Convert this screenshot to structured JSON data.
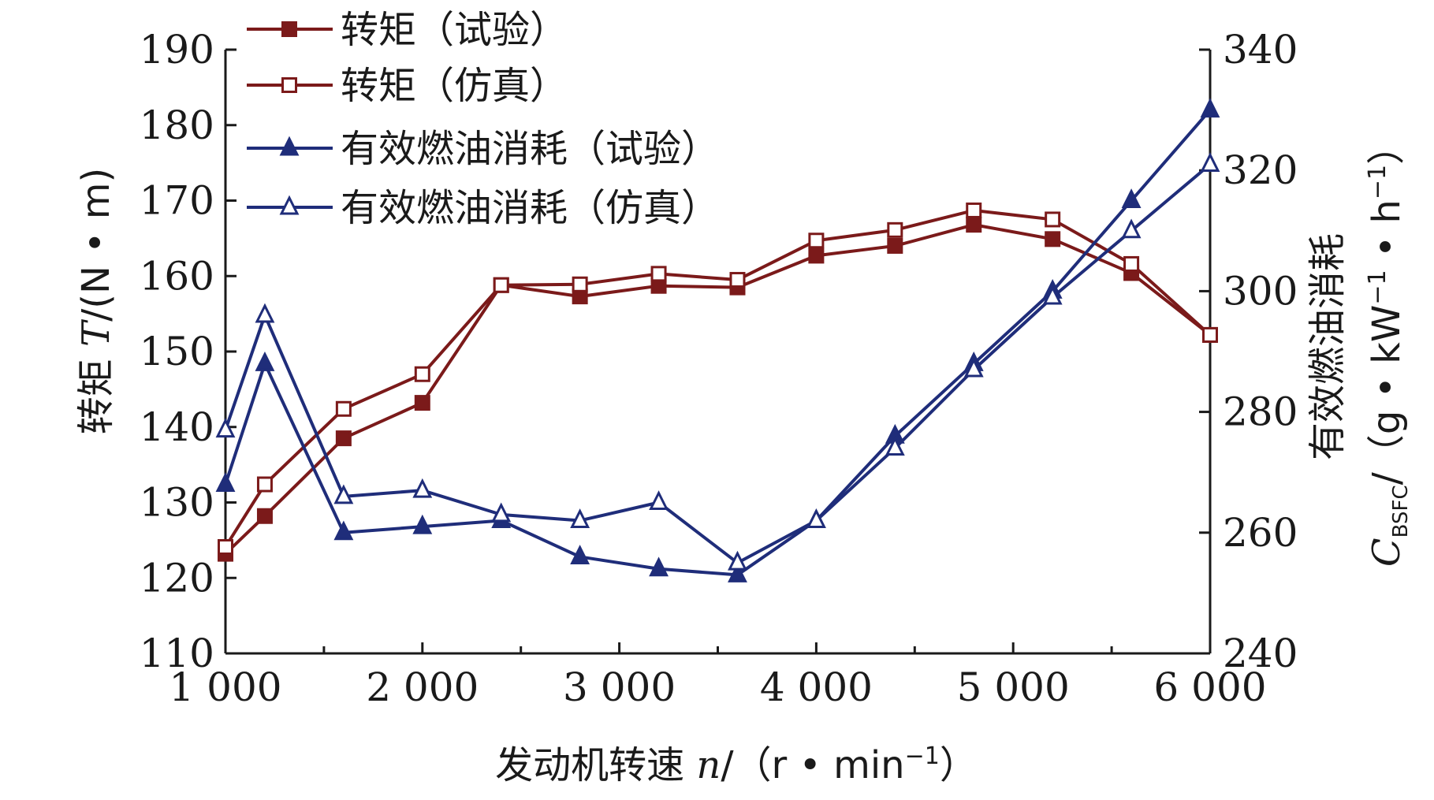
{
  "chart_data": {
    "type": "line",
    "x": [
      1000,
      1200,
      1600,
      2000,
      2400,
      2800,
      3200,
      3600,
      4000,
      4400,
      4800,
      5200,
      5600,
      6000
    ],
    "xticks": [
      "1 000",
      "2 000",
      "3 000",
      "4 000",
      "5 000",
      "6 000"
    ],
    "xtick_values": [
      1000,
      2000,
      3000,
      4000,
      5000,
      6000
    ],
    "xlim": [
      1000,
      6000
    ],
    "left_yticks": [
      "110",
      "120",
      "130",
      "140",
      "150",
      "160",
      "170",
      "180",
      "190"
    ],
    "left_ylim": [
      110,
      190
    ],
    "right_yticks": [
      "240",
      "260",
      "280",
      "300",
      "320",
      "340"
    ],
    "right_ylim": [
      240,
      340
    ],
    "xlabel": {
      "prefix": "发动机转速 ",
      "var": "n",
      "unit": "/（r • min",
      "sup": "−1",
      "close": "）"
    },
    "ylabel_left": {
      "prefix": "转矩 ",
      "var": "T",
      "unit": "/(N • m)"
    },
    "ylabel_right": {
      "line1": "有效燃油消耗",
      "var": "C",
      "sub": "BSFC",
      "unit": "/（g • kW",
      "sup1": "−1",
      "mid": " • h",
      "sup2": "−1",
      "close": "）"
    },
    "legend_position": "top-left",
    "series": [
      {
        "name": "转矩（试验）",
        "axis": "left",
        "color": "#7b1a1a",
        "marker": "square-filled",
        "values": [
          123.2,
          128.2,
          138.5,
          143.2,
          158.8,
          157.3,
          158.7,
          158.5,
          162.7,
          164,
          166.8,
          164.9,
          160.4,
          152.2
        ]
      },
      {
        "name": "转矩（仿真）",
        "axis": "left",
        "color": "#7b1a1a",
        "marker": "square-open",
        "values": [
          124.1,
          132.4,
          142.4,
          147,
          158.8,
          158.9,
          160.3,
          159.5,
          164.7,
          166.1,
          168.7,
          167.5,
          161.6,
          152.2
        ]
      },
      {
        "name": "有效燃油消耗（试验）",
        "axis": "right",
        "color": "#1f2d7a",
        "marker": "triangle-filled",
        "values": [
          268,
          288,
          260,
          261,
          262,
          256,
          254,
          253,
          262,
          276,
          288,
          300,
          315,
          330
        ]
      },
      {
        "name": "有效燃油消耗（仿真）",
        "axis": "right",
        "color": "#1f2d7a",
        "marker": "triangle-open",
        "values": [
          277,
          296,
          266,
          267,
          263,
          262,
          265,
          255,
          262,
          274,
          287,
          299,
          310,
          321
        ]
      }
    ]
  }
}
